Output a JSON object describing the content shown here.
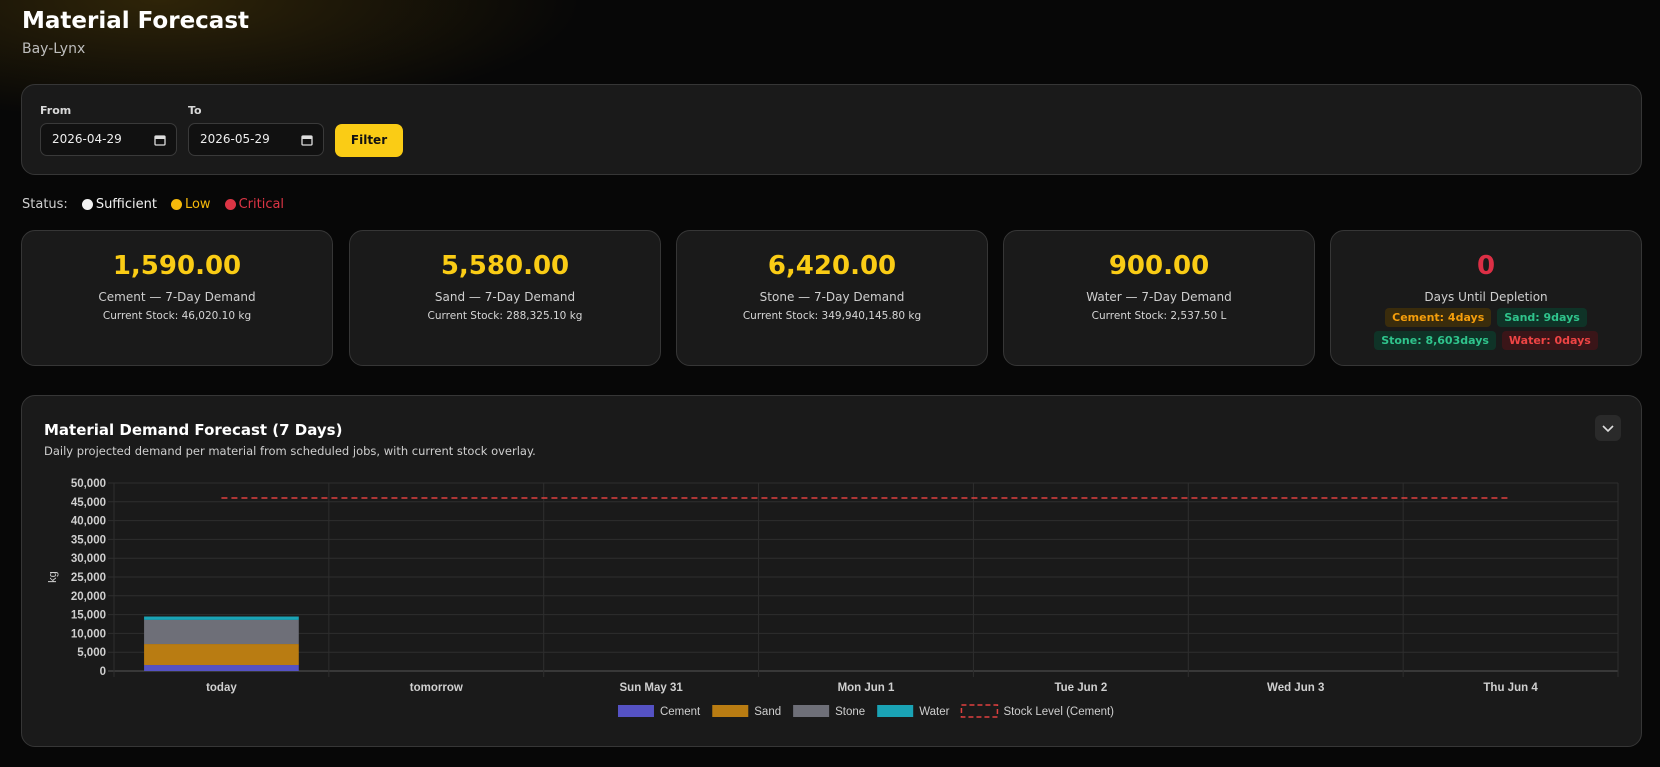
{
  "header": {
    "title": "Material Forecast",
    "subtitle": "Bay-Lynx"
  },
  "filter": {
    "from_label": "From",
    "from_value": "2026-04-29",
    "to_label": "To",
    "to_value": "2026-05-29",
    "button": "Filter"
  },
  "status": {
    "label": "Status:",
    "items": [
      "Sufficient",
      "Low",
      "Critical"
    ]
  },
  "cards": [
    {
      "value": "1,590.00",
      "label": "Cement — 7-Day Demand",
      "detail": "Current Stock: 46,020.10 kg"
    },
    {
      "value": "5,580.00",
      "label": "Sand — 7-Day Demand",
      "detail": "Current Stock: 288,325.10 kg"
    },
    {
      "value": "6,420.00",
      "label": "Stone — 7-Day Demand",
      "detail": "Current Stock: 349,940,145.80 kg"
    },
    {
      "value": "900.00",
      "label": "Water — 7-Day Demand",
      "detail": "Current Stock: 2,537.50 L"
    }
  ],
  "depletion": {
    "value": "0",
    "label": "Days Until Depletion",
    "badges": [
      "Cement: 4days",
      "Sand: 9days",
      "Stone: 8,603days",
      "Water: 0days"
    ]
  },
  "chart_data": {
    "type": "bar",
    "stacked": true,
    "title": "Material Demand Forecast (7 Days)",
    "subtitle": "Daily projected demand per material from scheduled jobs, with current stock overlay.",
    "y_label": "kg",
    "categories": [
      "today",
      "tomorrow",
      "Sun May 31",
      "Mon Jun 1",
      "Tue Jun 2",
      "Wed Jun 3",
      "Thu Jun 4"
    ],
    "series": [
      {
        "name": "Cement",
        "color": "#5552c4",
        "values": [
          1590,
          0,
          0,
          0,
          0,
          0,
          0
        ]
      },
      {
        "name": "Sand",
        "color": "#b97c12",
        "values": [
          5580,
          0,
          0,
          0,
          0,
          0,
          0
        ]
      },
      {
        "name": "Stone",
        "color": "#6e6f78",
        "values": [
          6420,
          0,
          0,
          0,
          0,
          0,
          0
        ]
      },
      {
        "name": "Water",
        "color": "#1aa3b5",
        "values": [
          900,
          0,
          0,
          0,
          0,
          0,
          0
        ]
      },
      {
        "name": "Stock Level (Cement)",
        "type": "line",
        "dashed": true,
        "color": "#e0403f",
        "values": [
          46020.1,
          46020.1,
          46020.1,
          46020.1,
          46020.1,
          46020.1,
          46020.1
        ]
      }
    ],
    "ylim": [
      0,
      50000
    ],
    "yticks": [
      0,
      {
        "value": 5000,
        "label": "5,000"
      },
      {
        "value": 10000,
        "label": "10,000"
      },
      {
        "value": 15000,
        "label": "15,000"
      },
      {
        "value": 20000,
        "label": "20,000"
      },
      {
        "value": 25000,
        "label": "25,000"
      },
      {
        "value": 30000,
        "label": "30,000"
      },
      {
        "value": 35000,
        "label": "35,000"
      },
      {
        "value": 40000,
        "label": "40,000"
      },
      {
        "value": 45000,
        "label": "45,000"
      },
      {
        "value": 50000,
        "label": "50,000"
      }
    ],
    "grid": true
  }
}
